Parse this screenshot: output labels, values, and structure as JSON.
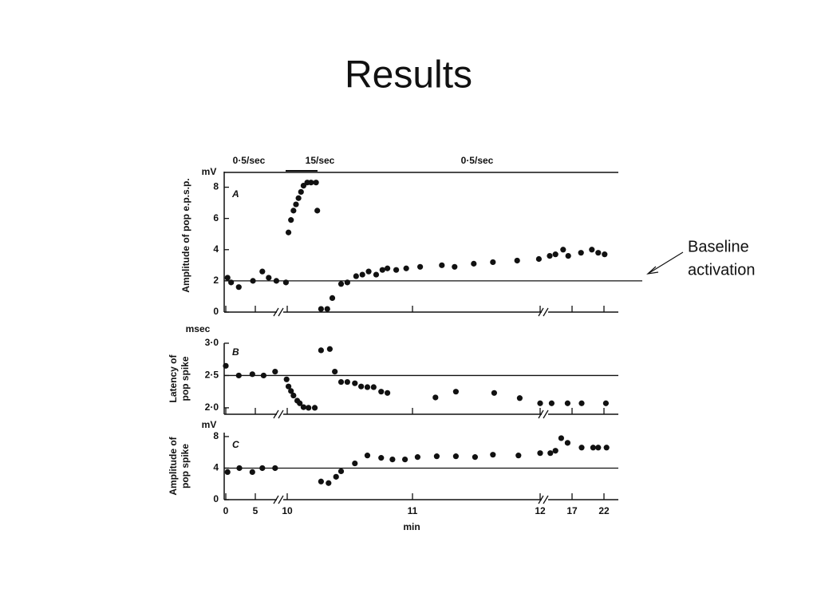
{
  "title": "Results",
  "annotation": [
    "Baseline",
    "activation"
  ],
  "chart_data": [
    {
      "type": "scatter",
      "label": "A",
      "ylabel": "Amplitude of pop e.p.s.p.",
      "yunit": "mV",
      "annotations": [
        "0·5/sec",
        "15/sec",
        "0·5/sec"
      ],
      "x": [
        0.3,
        0.9,
        2.2,
        4.6,
        6.1,
        7.1,
        8.3,
        9.8,
        10.01,
        10.03,
        10.05,
        10.07,
        10.09,
        10.11,
        10.13,
        10.16,
        10.19,
        10.23,
        10.24,
        10.27,
        10.32,
        10.36,
        10.43,
        10.48,
        10.55,
        10.6,
        10.65,
        10.71,
        10.76,
        10.8,
        10.87,
        10.95,
        11.06,
        11.23,
        11.33,
        11.48,
        11.63,
        11.82,
        11.99,
        13.5,
        14.4,
        15.6,
        16.4,
        18.4,
        20.1,
        21.1,
        22.1
      ],
      "values": [
        2.2,
        1.9,
        1.6,
        2.0,
        2.6,
        2.2,
        2.0,
        1.9,
        5.1,
        5.9,
        6.5,
        6.9,
        7.3,
        7.7,
        8.1,
        8.3,
        8.3,
        8.3,
        6.5,
        0.2,
        0.2,
        0.9,
        1.8,
        1.9,
        2.3,
        2.4,
        2.6,
        2.4,
        2.7,
        2.8,
        2.7,
        2.8,
        2.9,
        3.0,
        2.9,
        3.1,
        3.2,
        3.3,
        3.4,
        3.6,
        3.7,
        4.0,
        3.6,
        3.8,
        4.0,
        3.8,
        3.7
      ],
      "color": "#111111",
      "ylim": [
        0,
        9
      ],
      "yticks": [
        0,
        2,
        4,
        6,
        8
      ],
      "reference_line": 2
    },
    {
      "type": "scatter",
      "label": "B",
      "ylabel": [
        "Latency of",
        "pop spike"
      ],
      "yunit": "msec",
      "x": [
        0,
        2.2,
        4.5,
        6.3,
        8.1,
        9.9,
        10.01,
        10.03,
        10.05,
        10.08,
        10.1,
        10.13,
        10.17,
        10.22,
        10.27,
        10.34,
        10.38,
        10.43,
        10.48,
        10.54,
        10.59,
        10.64,
        10.69,
        10.75,
        10.8,
        11.18,
        11.34,
        11.64,
        11.84,
        12.0,
        13.8,
        16.3,
        18.5,
        22.3
      ],
      "values": [
        2.65,
        2.5,
        2.52,
        2.5,
        2.56,
        2.44,
        2.33,
        2.26,
        2.19,
        2.11,
        2.07,
        2.01,
        2.0,
        2.0,
        2.89,
        2.91,
        2.56,
        2.4,
        2.4,
        2.38,
        2.33,
        2.32,
        2.32,
        2.25,
        2.23,
        2.16,
        2.25,
        2.23,
        2.15,
        2.07,
        2.07,
        2.07,
        2.07,
        2.07
      ],
      "color": "#111111",
      "ylim": [
        1.9,
        3.0
      ],
      "yticks": [
        {
          "value": 2.0,
          "label": "2·0"
        },
        {
          "value": 2.5,
          "label": "2·5"
        },
        {
          "value": 3.0,
          "label": "3·0"
        }
      ],
      "reference_line": 2.5
    },
    {
      "type": "scatter",
      "label": "C",
      "ylabel": [
        "Amplitude of",
        "pop spike"
      ],
      "yunit": "mV",
      "xlabel": "min",
      "x": [
        0.3,
        2.3,
        4.5,
        6.1,
        8.1,
        10.27,
        10.33,
        10.39,
        10.43,
        10.54,
        10.64,
        10.75,
        10.84,
        10.94,
        11.04,
        11.19,
        11.34,
        11.49,
        11.63,
        11.83,
        12.0,
        13.6,
        14.4,
        15.3,
        16.3,
        18.5,
        20.3,
        21.1,
        22.4
      ],
      "values": [
        3.5,
        4.0,
        3.5,
        4.0,
        4.0,
        2.3,
        2.1,
        2.9,
        3.6,
        4.6,
        5.6,
        5.3,
        5.1,
        5.1,
        5.4,
        5.5,
        5.5,
        5.4,
        5.7,
        5.6,
        5.9,
        5.9,
        6.2,
        7.8,
        7.2,
        6.6,
        6.6,
        6.6,
        6.6
      ],
      "color": "#111111",
      "ylim": [
        0,
        8.5
      ],
      "yticks": [
        0,
        4,
        8
      ],
      "xticks": [
        0,
        5,
        10,
        11,
        12,
        17,
        22
      ],
      "reference_line": 4
    }
  ]
}
